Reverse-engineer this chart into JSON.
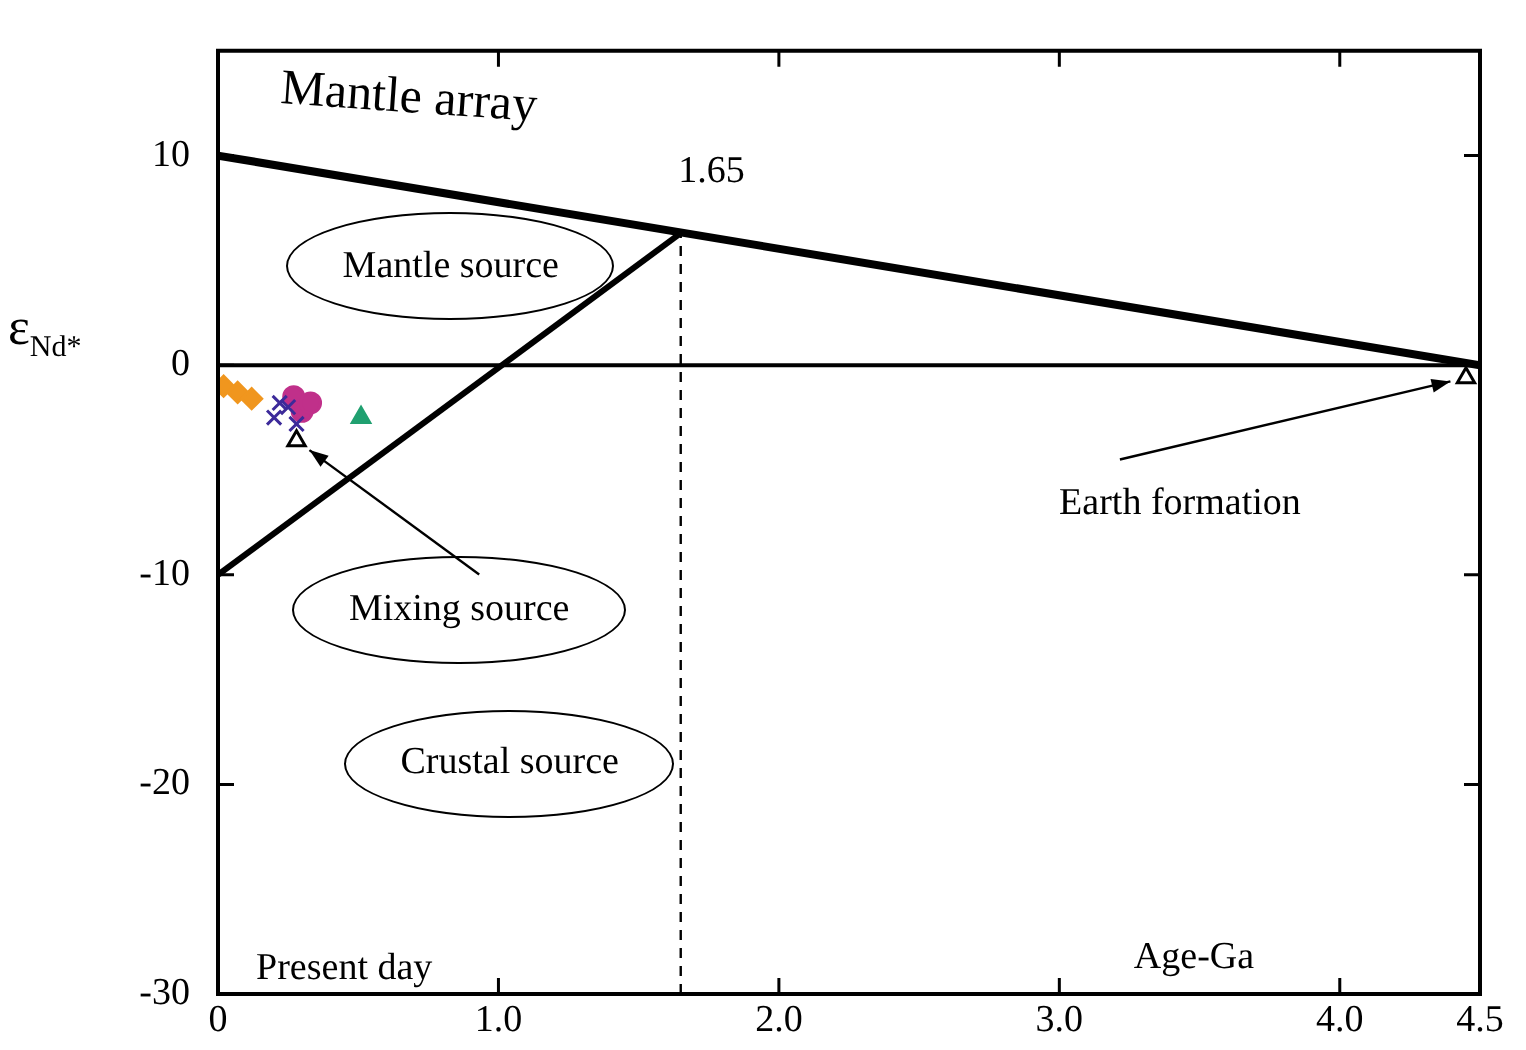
{
  "chart_data": {
    "type": "scatter",
    "xlabel": "Age-Ga",
    "ylabel": "ε$_{Nd*}$",
    "xlim": [
      0,
      4.5
    ],
    "xticks": [
      0,
      {
        "value": 1,
        "label": "1.0"
      },
      {
        "value": 2,
        "label": "2.0"
      },
      {
        "value": 3,
        "label": "3.0"
      },
      {
        "value": 4,
        "label": "4.0"
      },
      4.5
    ],
    "ylim": [
      -30,
      15
    ],
    "yticks": [
      -30,
      -20,
      -10,
      0,
      10
    ],
    "grid": false,
    "legend": false,
    "ref_lines": [
      {
        "axis": "y",
        "value": 0,
        "color": "#000000"
      }
    ],
    "series": [
      {
        "type": "line",
        "x": [
          0,
          4.5
        ],
        "values": [
          10,
          0
        ],
        "color": "#000000",
        "marker": "none"
      },
      {
        "type": "line",
        "x": [
          0,
          1.65
        ],
        "values": [
          -10,
          6.3
        ],
        "color": "#000000",
        "marker": "none"
      },
      {
        "type": "line",
        "x": [
          1.65,
          1.65
        ],
        "values": [
          -30,
          6.3
        ],
        "color": "#000000",
        "marker": "none",
        "line_style": "dashed"
      },
      {
        "type": "scatter",
        "x": [
          0.02,
          0.07,
          0.12
        ],
        "values": [
          -1,
          -1.3,
          -1.6
        ],
        "color": "#f0961e",
        "marker": "diamond"
      },
      {
        "type": "scatter",
        "x": [
          0.2,
          0.25,
          0.28,
          0.22
        ],
        "values": [
          -2.5,
          -2,
          -2.8,
          -1.8
        ],
        "color": "#3c2a9a",
        "marker": "cross"
      },
      {
        "type": "scatter",
        "x": [
          0.27,
          0.3,
          0.33
        ],
        "values": [
          -1.5,
          -2.2,
          -1.8
        ],
        "color": "#c0308a",
        "marker": "circle"
      },
      {
        "type": "scatter",
        "x": [
          0.51
        ],
        "values": [
          -2.5
        ],
        "color": "#20a070",
        "marker": "triangle"
      },
      {
        "type": "scatter",
        "x": [
          0.28,
          4.45
        ],
        "values": [
          -3.6,
          -0.6
        ],
        "color": "#000000",
        "marker": "triangle"
      }
    ],
    "annotations": [
      "Mantle array",
      "1.65",
      "Mantle source",
      {
        "text": "Mixing source",
        "x": 0.28,
        "y": -3.6
      },
      "Crustal source",
      {
        "text": "Earth formation",
        "x": 4.45,
        "y": -0.6
      },
      "Present day"
    ]
  }
}
